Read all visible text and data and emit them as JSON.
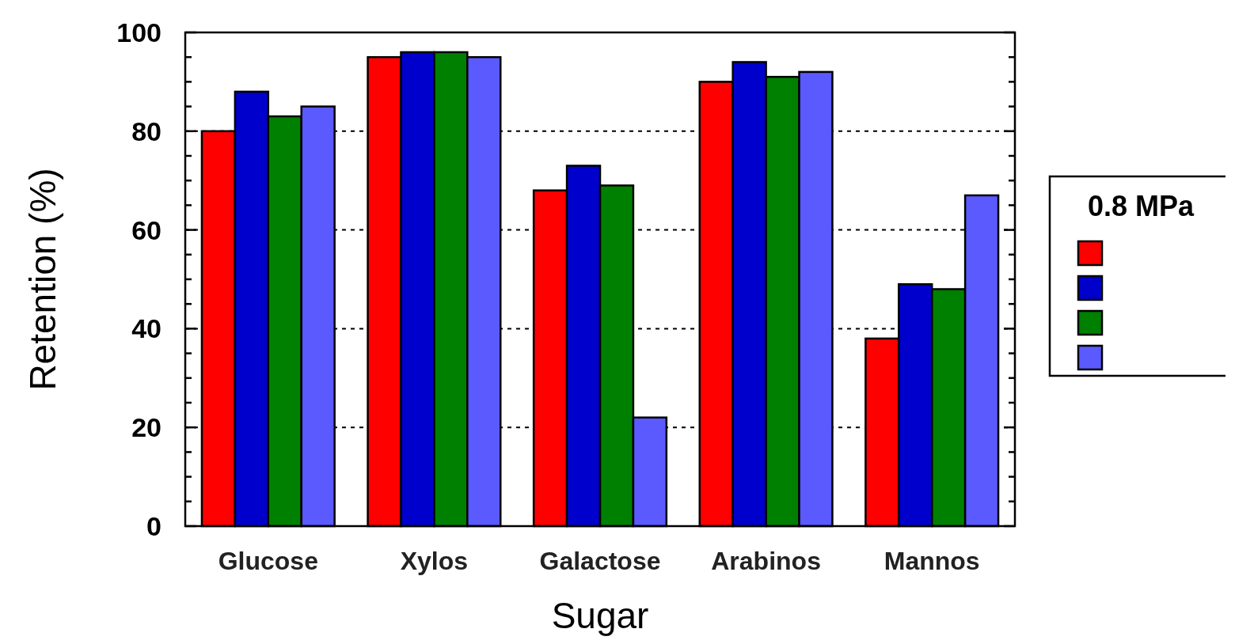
{
  "chart_data": {
    "type": "bar",
    "xlabel": "Sugar",
    "ylabel": "Retention (%)",
    "legend_title": "0.8 MPa",
    "categories": [
      "Glucose",
      "Xylos",
      "Galactose",
      "Arabinos",
      "Mannos"
    ],
    "series": [
      {
        "color": "#ff0000",
        "values": [
          80,
          95,
          68,
          90,
          38
        ]
      },
      {
        "color": "#0000cc",
        "values": [
          88,
          96,
          73,
          94,
          49
        ]
      },
      {
        "color": "#008000",
        "values": [
          83,
          96,
          69,
          91,
          48
        ]
      },
      {
        "color": "#5a5aff",
        "values": [
          85,
          95,
          22,
          92,
          67
        ]
      }
    ],
    "ylim": [
      0,
      100
    ],
    "yticks": [
      0,
      {
        "value": 5,
        "label": null
      },
      {
        "value": 10,
        "label": null
      },
      {
        "value": 15,
        "label": null
      },
      20,
      {
        "value": 25,
        "label": null
      },
      {
        "value": 30,
        "label": null
      },
      {
        "value": 35,
        "label": null
      },
      40,
      {
        "value": 45,
        "label": null
      },
      {
        "value": 50,
        "label": null
      },
      {
        "value": 55,
        "label": null
      },
      60,
      {
        "value": 65,
        "label": null
      },
      {
        "value": 70,
        "label": null
      },
      {
        "value": 75,
        "label": null
      },
      80,
      {
        "value": 85,
        "label": null
      },
      {
        "value": 90,
        "label": null
      },
      {
        "value": 95,
        "label": null
      },
      100
    ],
    "grid": "y"
  }
}
